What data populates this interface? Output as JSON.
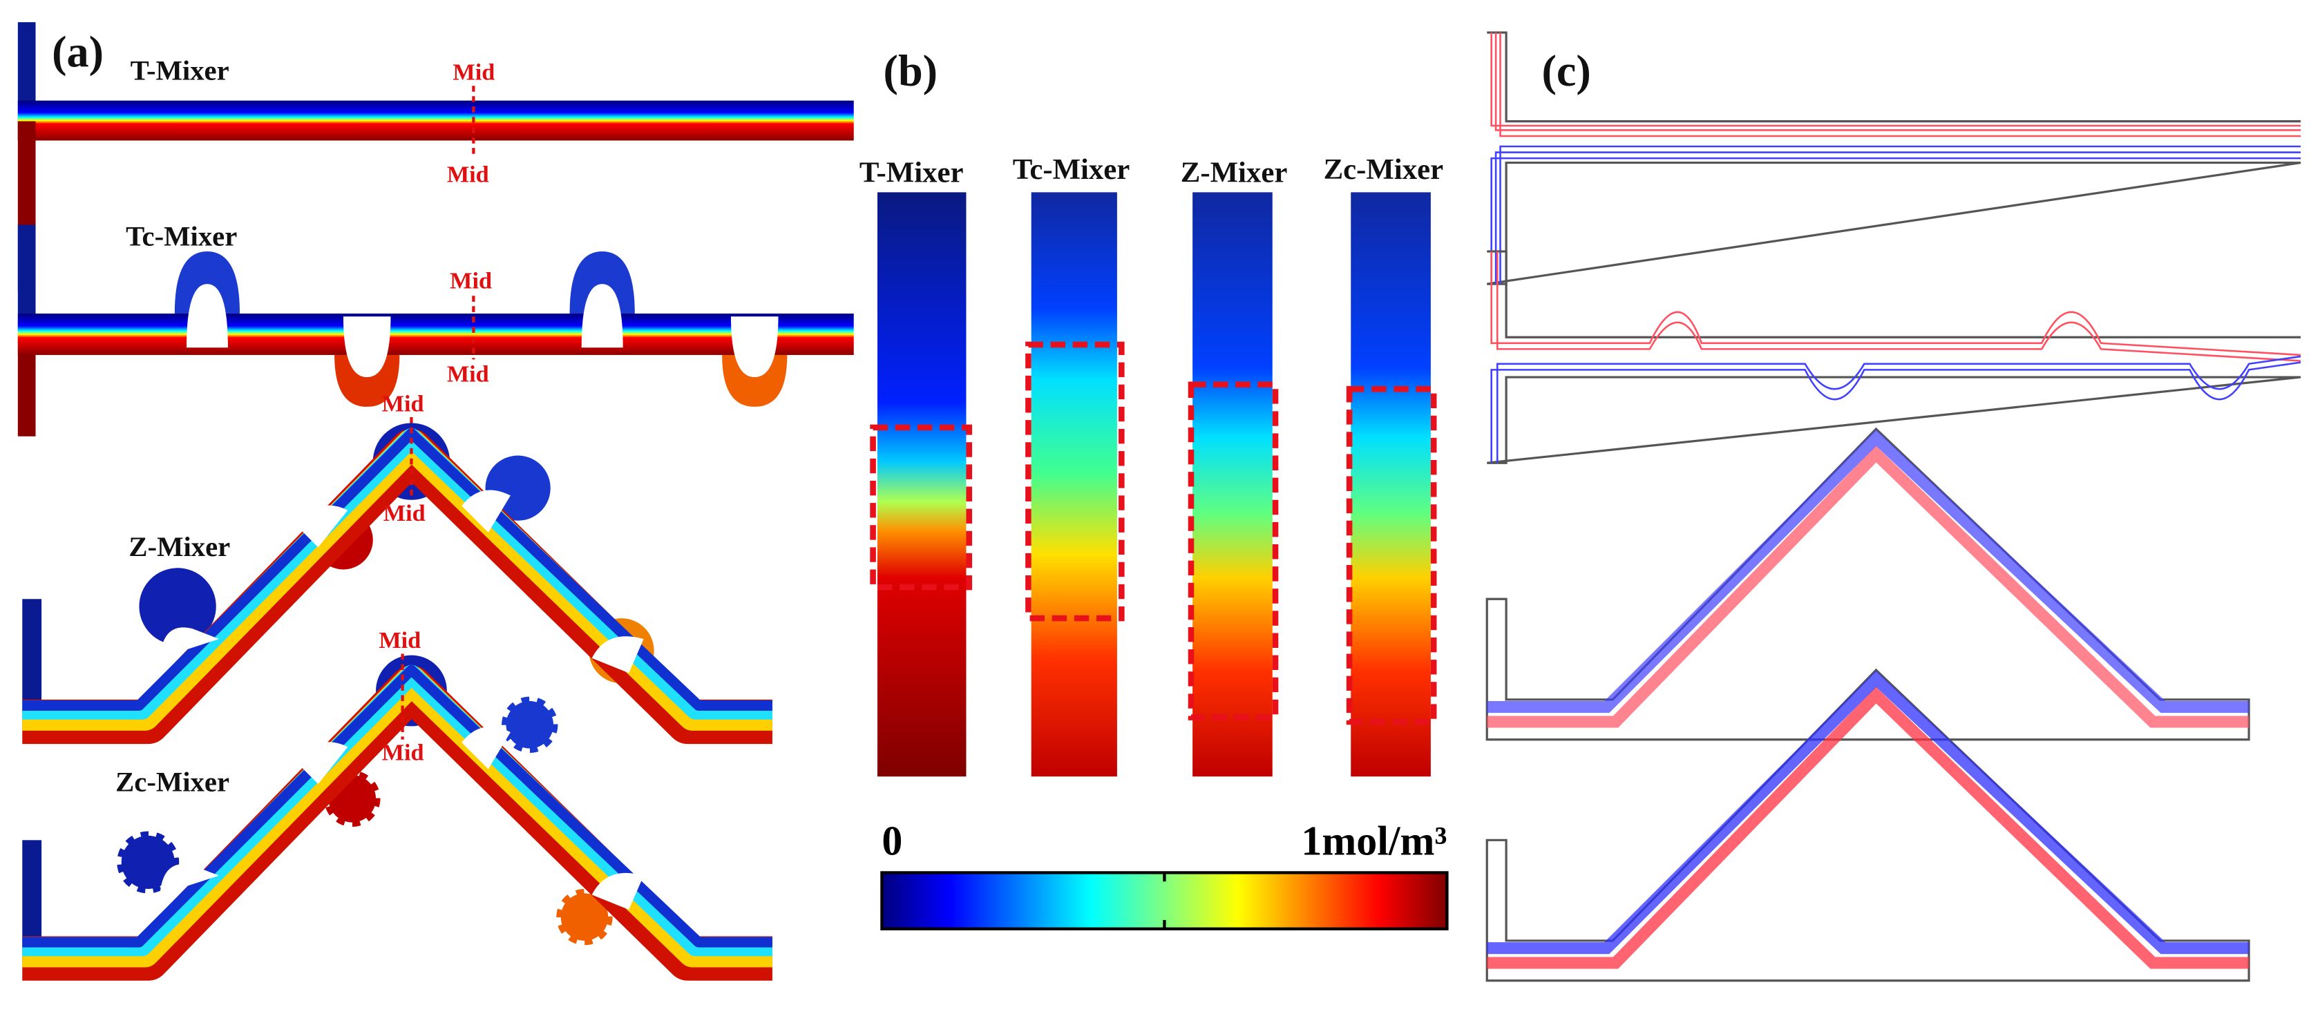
{
  "panels": [
    "(a)",
    "(b)",
    "(c)"
  ],
  "panel_a": {
    "mixers": [
      "T-Mixer",
      "Tc-Mixer",
      "Z-Mixer",
      "Zc-Mixer"
    ],
    "mid_labels": [
      "Mid",
      "Mid",
      "Mid",
      "Mid",
      "Mid",
      "Mid",
      "Mid",
      "Mid"
    ]
  },
  "panel_b": {
    "columns": [
      "T-Mixer",
      "Tc-Mixer",
      "Z-Mixer",
      "Zc-Mixer"
    ],
    "colorbar": {
      "min_label": "0",
      "max_label": "1mol/m³"
    }
  }
}
